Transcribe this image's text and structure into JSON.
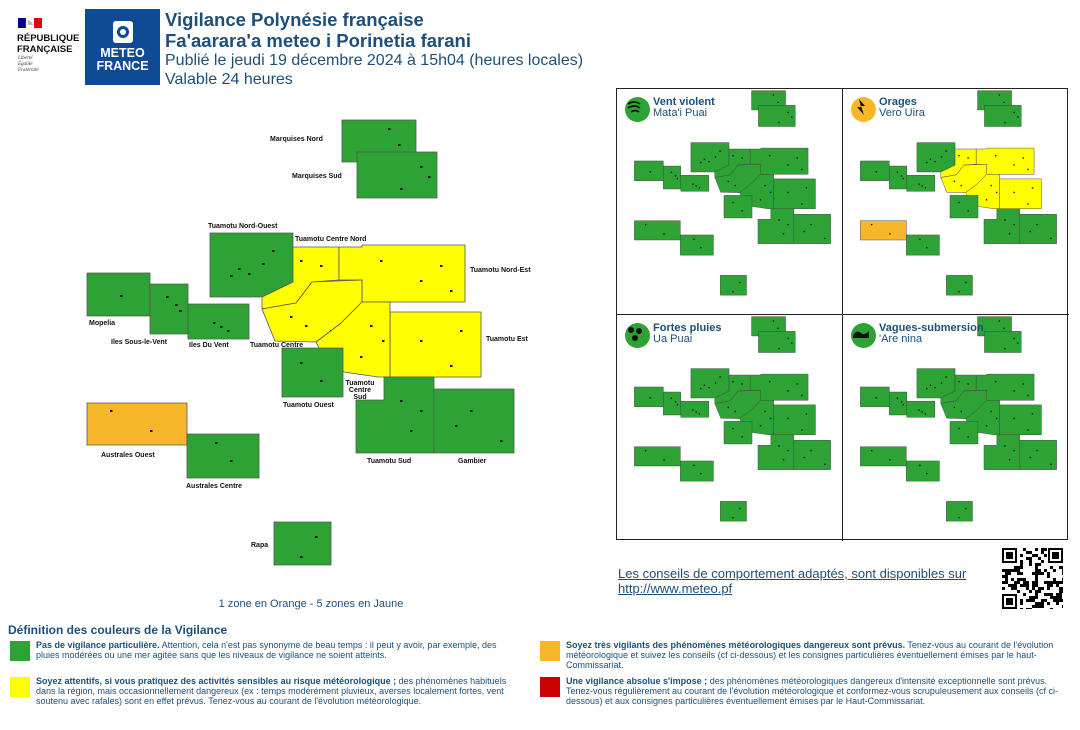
{
  "header": {
    "gov_logo": {
      "lines": [
        "RÉPUBLIQUE",
        "FRANÇAISE"
      ],
      "motto": [
        "Liberté",
        "Égalité",
        "Fraternité"
      ]
    },
    "mf_logo": {
      "lines": [
        "METEO",
        "FRANCE"
      ]
    },
    "title": "Vigilance Polynésie française",
    "title_local": "Fa'aarara'a meteo i Porinetia farani",
    "published": "Publié le jeudi 19 décembre 2024 à 15h04 (heures locales)",
    "validity": "Valable 24 heures"
  },
  "colors": {
    "green": "#2ea335",
    "yellow": "#ffff00",
    "orange": "#f8b72b",
    "red": "#cc0000",
    "text": "#1d4f7a"
  },
  "zones": [
    {
      "id": "marquises_nord",
      "label": "Marquises Nord",
      "level": "green"
    },
    {
      "id": "marquises_sud",
      "label": "Marquises Sud",
      "level": "green"
    },
    {
      "id": "tuamotu_nord_ouest",
      "label": "Tuamotu Nord-Ouest",
      "level": "green"
    },
    {
      "id": "tuamotu_centre_nord",
      "label": "Tuamotu Centre Nord",
      "level": "yellow"
    },
    {
      "id": "tuamotu_nord_est",
      "label": "Tuamotu Nord-Est",
      "level": "yellow"
    },
    {
      "id": "mopelia",
      "label": "Mopelia",
      "level": "green"
    },
    {
      "id": "iles_sous_le_vent",
      "label": "Iles Sous-le-Vent",
      "level": "green"
    },
    {
      "id": "iles_du_vent",
      "label": "Iles Du Vent",
      "level": "green"
    },
    {
      "id": "tuamotu_centre",
      "label": "Tuamotu Centre",
      "level": "yellow"
    },
    {
      "id": "tuamotu_est",
      "label": "Tuamotu Est",
      "level": "yellow"
    },
    {
      "id": "tuamotu_centre_sud",
      "label": "Tuamotu Centre Sud",
      "level": "yellow"
    },
    {
      "id": "tuamotu_ouest",
      "label": "Tuamotu Ouest",
      "level": "green"
    },
    {
      "id": "tuamotu_sud",
      "label": "Tuamotu Sud",
      "level": "green"
    },
    {
      "id": "gambier",
      "label": "Gambier",
      "level": "green"
    },
    {
      "id": "australes_ouest",
      "label": "Australes Ouest",
      "level": "orange"
    },
    {
      "id": "australes_centre",
      "label": "Australes Centre",
      "level": "green"
    },
    {
      "id": "rapa",
      "label": "Rapa",
      "level": "green"
    }
  ],
  "summary": "1 zone en Orange - 5 zones en Jaune",
  "phenomena": [
    {
      "title": "Vent violent",
      "subtitle": "Mata'i Puai",
      "icon": "wind-icon",
      "icon_color": "#2ea335",
      "yellow_zones": [],
      "orange_zones": []
    },
    {
      "title": "Orages",
      "subtitle": "Vero Uira",
      "icon": "lightning-icon",
      "icon_color": "#f8b72b",
      "yellow_zones": [
        "tuamotu_centre_nord",
        "tuamotu_nord_est",
        "tuamotu_centre",
        "tuamotu_est",
        "tuamotu_centre_sud"
      ],
      "orange_zones": [
        "australes_ouest"
      ]
    },
    {
      "title": "Fortes pluies",
      "subtitle": "Ua Puai",
      "icon": "rain-icon",
      "icon_color": "#2ea335",
      "yellow_zones": [],
      "orange_zones": []
    },
    {
      "title": "Vagues-submersion",
      "subtitle": "'Are nina",
      "icon": "wave-icon",
      "icon_color": "#2ea335",
      "yellow_zones": [],
      "orange_zones": []
    }
  ],
  "advice": {
    "text": "Les conseils de comportement adaptés, sont disponibles sur",
    "link": "http://www.meteo.pf"
  },
  "legend": {
    "title": "Définition des couleurs de la Vigilance",
    "items": [
      {
        "color": "#2ea335",
        "bold": "Pas de vigilance particulière.",
        "text": " Attention, cela n'est pas synonyme de beau temps : il peut y avoir, par exemple, des pluies modérées ou une mer agitée sans que les niveaux de vigilance ne soient atteints."
      },
      {
        "color": "#f8b72b",
        "bold": "Soyez très vigilants des phénomènes météorologiques dangereux sont prévus.",
        "text": " Tenez-vous au courant de l'évolution météorologique et suivez les conseils (cf ci-dessous) et les consignes particulières éventuellement émises par le haut-Commissariat."
      },
      {
        "color": "#ffff00",
        "bold": "Soyez attentifs, si vous pratiquez des activités sensibles au risque météorologique ;",
        "text": " des phénomènes habituels dans la région, mais occasionnellement dangereux (ex : temps modérément pluvieux, averses localement fortes, vent soutenu avec rafales) sont en effet prévus. Tenez-vous au courant de l'évolution météorologique."
      },
      {
        "color": "#cc0000",
        "bold": "Une vigilance absolue s'impose ;",
        "text": " des phénomènes météorologiques dangereux d'intensité exceptionnelle sont prévus. Tenez-vous régulièrement au courant de l'évolution météorologique et conformez-vous scrupuleusement aux conseils (cf ci-dessous) et aux consignes particulières éventuellement émises par le Haut-Commissariat."
      }
    ]
  }
}
